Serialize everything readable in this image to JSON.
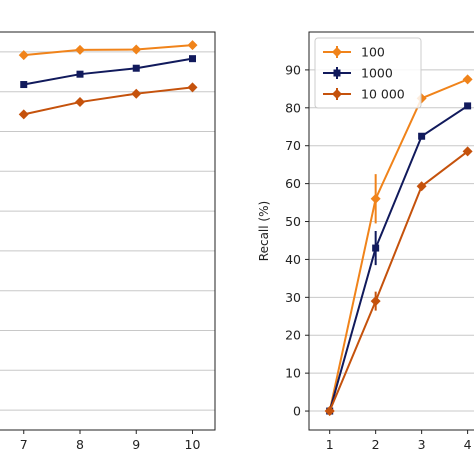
{
  "chart_data": [
    {
      "type": "line",
      "xlabel": "",
      "ylabel": "",
      "x": [
        7,
        8,
        9,
        10
      ],
      "xlim": [
        5.6,
        10.4
      ],
      "ylim": [
        -5,
        95
      ],
      "grid": "horizontal",
      "series": [
        {
          "name": "100",
          "color": "#f0831a",
          "marker": "diamond",
          "values": [
            89.2,
            90.5,
            90.6,
            91.7
          ]
        },
        {
          "name": "1000",
          "color": "#111a5c",
          "marker": "square",
          "values": [
            81.8,
            84.4,
            85.9,
            88.3
          ]
        },
        {
          "name": "10 000",
          "color": "#c5520c",
          "marker": "diamond",
          "values": [
            74.3,
            77.4,
            79.5,
            81.1
          ]
        }
      ]
    },
    {
      "type": "line",
      "xlabel": "",
      "ylabel": "Recall (%)",
      "x": [
        1,
        2,
        3,
        4
      ],
      "xlim": [
        0.55,
        4.4
      ],
      "ylim": [
        -5,
        100
      ],
      "yticks": [
        0,
        10,
        20,
        30,
        40,
        50,
        60,
        70,
        80,
        90
      ],
      "grid": "horizontal",
      "legend": "top-left",
      "series": [
        {
          "name": "100",
          "color": "#f0831a",
          "marker": "diamond",
          "values": [
            0,
            56,
            82.5,
            87.5
          ],
          "errors": [
            0,
            6.5,
            0,
            0
          ]
        },
        {
          "name": "1000",
          "color": "#111a5c",
          "marker": "square",
          "values": [
            0,
            43,
            72.5,
            80.5
          ],
          "errors": [
            0,
            4.5,
            0,
            0
          ]
        },
        {
          "name": "10 000",
          "color": "#c5520c",
          "marker": "diamond",
          "values": [
            0,
            29,
            59.3,
            68.5
          ],
          "errors": [
            0,
            2.5,
            0,
            0
          ]
        }
      ]
    }
  ]
}
